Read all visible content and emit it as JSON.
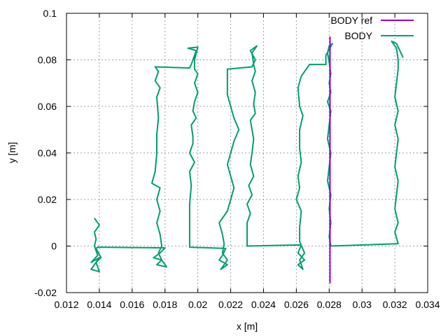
{
  "chart_data": {
    "type": "line",
    "xlabel": "x [m]",
    "ylabel": "y [m]",
    "xlim": [
      0.012,
      0.034
    ],
    "ylim": [
      -0.02,
      0.1
    ],
    "xticks": [
      0.012,
      0.014,
      0.016,
      0.018,
      0.02,
      0.022,
      0.024,
      0.026,
      0.028,
      0.03,
      0.032,
      0.034
    ],
    "xtick_labels": [
      "0.012",
      "0.014",
      "0.016",
      "0.018",
      "0.02",
      "0.022",
      "0.024",
      "0.026",
      "0.028",
      "0.03",
      "0.032",
      "0.034"
    ],
    "yticks": [
      -0.02,
      0,
      0.02,
      0.04,
      0.06,
      0.08,
      0.1
    ],
    "ytick_labels": [
      "-0.02",
      "0",
      "0.02",
      "0.04",
      "0.06",
      "0.08",
      "0.1"
    ],
    "grid": true,
    "legend_position": "top-right",
    "series": [
      {
        "name": "BODY ref",
        "color": "#9400d3",
        "points": [
          [
            0.02805,
            -0.016
          ],
          [
            0.02805,
            0.09
          ]
        ]
      },
      {
        "name": "BODY",
        "color": "#009e73",
        "points": [
          [
            0.0137,
            0.012
          ],
          [
            0.014,
            0.009
          ],
          [
            0.0137,
            0.006
          ],
          [
            0.0138,
            0.003
          ],
          [
            0.0137,
            0.0
          ],
          [
            0.0139,
            -0.004
          ],
          [
            0.0135,
            -0.007
          ],
          [
            0.014,
            -0.005
          ],
          [
            0.0135,
            -0.01
          ],
          [
            0.014,
            -0.011
          ],
          [
            0.0138,
            -0.007
          ],
          [
            0.0141,
            -0.005
          ],
          [
            0.0138,
            -0.001
          ],
          [
            0.0139,
            -0.0005
          ],
          [
            0.018,
            -0.0008
          ],
          [
            0.0177,
            -0.003
          ],
          [
            0.0173,
            -0.005
          ],
          [
            0.0178,
            -0.006
          ],
          [
            0.0175,
            -0.008
          ],
          [
            0.0181,
            -0.009
          ],
          [
            0.0178,
            -0.006
          ],
          [
            0.0176,
            -0.003
          ],
          [
            0.0178,
            0.0
          ],
          [
            0.0177,
            0.005
          ],
          [
            0.0175,
            0.01
          ],
          [
            0.0177,
            0.015
          ],
          [
            0.0175,
            0.02
          ],
          [
            0.0177,
            0.025
          ],
          [
            0.0172,
            0.027
          ],
          [
            0.0174,
            0.032
          ],
          [
            0.0175,
            0.04
          ],
          [
            0.0175,
            0.048
          ],
          [
            0.0176,
            0.055
          ],
          [
            0.0175,
            0.064
          ],
          [
            0.0177,
            0.068
          ],
          [
            0.0174,
            0.071
          ],
          [
            0.0176,
            0.075
          ],
          [
            0.0174,
            0.077
          ],
          [
            0.0195,
            0.0765
          ],
          [
            0.0196,
            0.078
          ],
          [
            0.0199,
            0.084
          ],
          [
            0.0194,
            0.085
          ],
          [
            0.02,
            0.0855
          ],
          [
            0.0198,
            0.08
          ],
          [
            0.0198,
            0.076
          ],
          [
            0.02,
            0.074
          ],
          [
            0.0198,
            0.07
          ],
          [
            0.02,
            0.066
          ],
          [
            0.0198,
            0.062
          ],
          [
            0.0197,
            0.058
          ],
          [
            0.0199,
            0.055
          ],
          [
            0.0196,
            0.052
          ],
          [
            0.0197,
            0.047
          ],
          [
            0.0197,
            0.044
          ],
          [
            0.0195,
            0.04
          ],
          [
            0.0198,
            0.036
          ],
          [
            0.0195,
            0.032
          ],
          [
            0.0196,
            0.026
          ],
          [
            0.0195,
            0.018
          ],
          [
            0.0195,
            0.01
          ],
          [
            0.0195,
            0.002
          ],
          [
            0.0195,
            -0.0005
          ],
          [
            0.0217,
            -0.001
          ],
          [
            0.0215,
            -0.004
          ],
          [
            0.0213,
            -0.006
          ],
          [
            0.0218,
            -0.008
          ],
          [
            0.0214,
            -0.01
          ],
          [
            0.0218,
            -0.006
          ],
          [
            0.0215,
            -0.003
          ],
          [
            0.0216,
            0.001
          ],
          [
            0.0215,
            0.005
          ],
          [
            0.0213,
            0.01
          ],
          [
            0.0218,
            0.015
          ],
          [
            0.022,
            0.02
          ],
          [
            0.0222,
            0.025
          ],
          [
            0.022,
            0.03
          ],
          [
            0.0218,
            0.035
          ],
          [
            0.022,
            0.04
          ],
          [
            0.0222,
            0.045
          ],
          [
            0.0225,
            0.05
          ],
          [
            0.0222,
            0.055
          ],
          [
            0.022,
            0.06
          ],
          [
            0.0218,
            0.065
          ],
          [
            0.0218,
            0.07
          ],
          [
            0.0218,
            0.076
          ],
          [
            0.0233,
            0.077
          ],
          [
            0.0235,
            0.08
          ],
          [
            0.0232,
            0.084
          ],
          [
            0.0236,
            0.086
          ],
          [
            0.0233,
            0.083
          ],
          [
            0.0234,
            0.078
          ],
          [
            0.0235,
            0.075
          ],
          [
            0.0233,
            0.071
          ],
          [
            0.0235,
            0.066
          ],
          [
            0.0234,
            0.061
          ],
          [
            0.0235,
            0.057
          ],
          [
            0.0232,
            0.054
          ],
          [
            0.0233,
            0.05
          ],
          [
            0.0234,
            0.046
          ],
          [
            0.0233,
            0.04
          ],
          [
            0.0232,
            0.035
          ],
          [
            0.0234,
            0.03
          ],
          [
            0.0231,
            0.026
          ],
          [
            0.0233,
            0.022
          ],
          [
            0.023,
            0.018
          ],
          [
            0.0232,
            0.014
          ],
          [
            0.023,
            0.01
          ],
          [
            0.023,
            0.005
          ],
          [
            0.023,
            0.0
          ],
          [
            0.0263,
            0.0005
          ],
          [
            0.0261,
            -0.003
          ],
          [
            0.0265,
            -0.006
          ],
          [
            0.0261,
            -0.008
          ],
          [
            0.0264,
            -0.01
          ],
          [
            0.0262,
            -0.006
          ],
          [
            0.0265,
            -0.003
          ],
          [
            0.0262,
            0.002
          ],
          [
            0.0262,
            0.008
          ],
          [
            0.0263,
            0.015
          ],
          [
            0.026,
            0.02
          ],
          [
            0.0262,
            0.025
          ],
          [
            0.0261,
            0.03
          ],
          [
            0.0263,
            0.036
          ],
          [
            0.0262,
            0.042
          ],
          [
            0.0262,
            0.05
          ],
          [
            0.0264,
            0.056
          ],
          [
            0.0262,
            0.06
          ],
          [
            0.0261,
            0.068
          ],
          [
            0.0263,
            0.073
          ],
          [
            0.0266,
            0.076
          ],
          [
            0.0268,
            0.078
          ],
          [
            0.0278,
            0.078
          ],
          [
            0.0278,
            0.082
          ],
          [
            0.0282,
            0.087
          ],
          [
            0.028,
            0.086
          ],
          [
            0.0279,
            0.083
          ],
          [
            0.028,
            0.079
          ],
          [
            0.0281,
            0.074
          ],
          [
            0.028,
            0.07
          ],
          [
            0.0281,
            0.066
          ],
          [
            0.0279,
            0.062
          ],
          [
            0.0281,
            0.058
          ],
          [
            0.028,
            0.052
          ],
          [
            0.0279,
            0.046
          ],
          [
            0.0281,
            0.04
          ],
          [
            0.028,
            0.034
          ],
          [
            0.0279,
            0.028
          ],
          [
            0.0281,
            0.022
          ],
          [
            0.028,
            0.016
          ],
          [
            0.0281,
            0.01
          ],
          [
            0.028,
            0.004
          ],
          [
            0.0281,
            0.0
          ],
          [
            0.0322,
            0.001
          ],
          [
            0.032,
            0.006
          ],
          [
            0.0322,
            0.01
          ],
          [
            0.032,
            0.016
          ],
          [
            0.0321,
            0.022
          ],
          [
            0.0322,
            0.028
          ],
          [
            0.032,
            0.034
          ],
          [
            0.0321,
            0.04
          ],
          [
            0.0322,
            0.046
          ],
          [
            0.032,
            0.052
          ],
          [
            0.0322,
            0.058
          ],
          [
            0.032,
            0.064
          ],
          [
            0.0321,
            0.07
          ],
          [
            0.0322,
            0.076
          ],
          [
            0.0322,
            0.08
          ],
          [
            0.0321,
            0.085
          ],
          [
            0.0318,
            0.088
          ],
          [
            0.0321,
            0.087
          ],
          [
            0.0323,
            0.084
          ],
          [
            0.0325,
            0.081
          ]
        ]
      }
    ]
  }
}
